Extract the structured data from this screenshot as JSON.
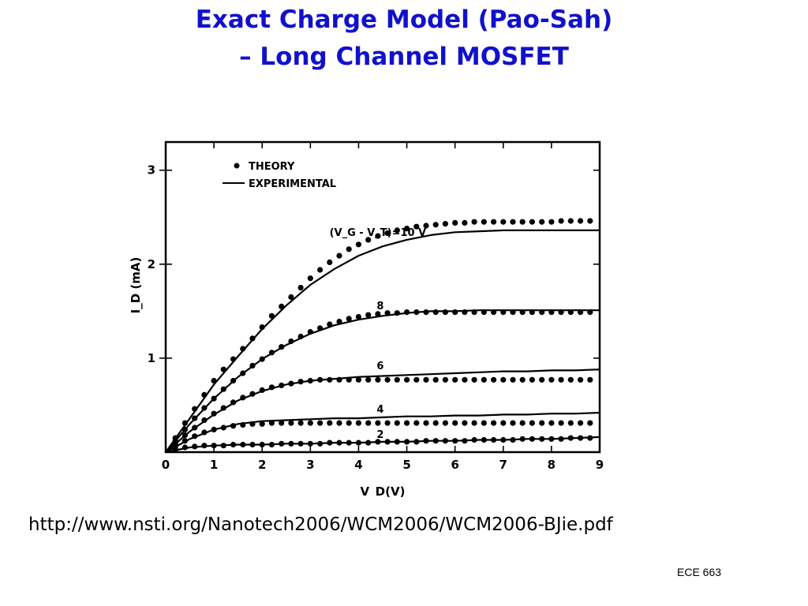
{
  "title": {
    "line1": "Exact Charge Model (Pao-Sah)",
    "line2": "– Long Channel MOSFET"
  },
  "source_url": "http://www.nsti.org/Nanotech2006/WCM2006/WCM2006-BJie.pdf",
  "footer": "ECE 663",
  "colors": {
    "title": "#1111cc",
    "ink": "#000000"
  },
  "chart_data": {
    "type": "line",
    "xlabel": "V_D(V)",
    "ylabel": "I_D (mA)",
    "xlim": [
      0,
      9
    ],
    "ylim": [
      0,
      3.3
    ],
    "xticks": [
      0,
      1,
      2,
      3,
      4,
      5,
      6,
      7,
      8,
      9
    ],
    "yticks": [
      1,
      2,
      3
    ],
    "legend": {
      "placement": "top-left",
      "entries": [
        {
          "marker": "dot",
          "label": "THEORY"
        },
        {
          "marker": "line",
          "label": "EXPERIMENTAL"
        }
      ]
    },
    "curve_labels": [
      {
        "text": "(V_G - V_T)=10 V",
        "x": 4.4,
        "y": 2.3
      },
      {
        "text": "8",
        "x": 4.45,
        "y": 1.52
      },
      {
        "text": "6",
        "x": 4.45,
        "y": 0.88
      },
      {
        "text": "4",
        "x": 4.45,
        "y": 0.42
      },
      {
        "text": "2",
        "x": 4.45,
        "y": 0.15
      }
    ],
    "series": [
      {
        "vgvt": 10,
        "experimental": {
          "x": [
            0,
            0.5,
            1,
            1.5,
            2,
            2.5,
            3,
            3.5,
            4,
            4.5,
            5,
            5.5,
            6,
            6.5,
            7,
            7.5,
            8,
            8.5,
            9
          ],
          "y": [
            0,
            0.36,
            0.72,
            1.02,
            1.31,
            1.56,
            1.78,
            1.95,
            2.09,
            2.19,
            2.26,
            2.31,
            2.34,
            2.35,
            2.36,
            2.36,
            2.36,
            2.36,
            2.36
          ]
        },
        "theory": {
          "x": [
            0.2,
            0.4,
            0.6,
            0.8,
            1.0,
            1.2,
            1.4,
            1.6,
            1.8,
            2.0,
            2.2,
            2.4,
            2.6,
            2.8,
            3.0,
            3.2,
            3.4,
            3.6,
            3.8,
            4.0,
            4.2,
            4.4,
            4.6,
            4.8,
            5.0,
            5.2,
            5.4,
            5.6,
            5.8,
            6.0,
            6.2,
            6.4,
            6.6,
            6.8,
            7.0,
            7.2,
            7.4,
            7.6,
            7.8,
            8.0,
            8.2,
            8.4,
            8.6,
            8.8
          ],
          "y": [
            0.15,
            0.31,
            0.46,
            0.61,
            0.76,
            0.88,
            0.99,
            1.1,
            1.21,
            1.33,
            1.45,
            1.55,
            1.65,
            1.75,
            1.85,
            1.94,
            2.02,
            2.09,
            2.16,
            2.21,
            2.26,
            2.3,
            2.33,
            2.36,
            2.38,
            2.4,
            2.41,
            2.42,
            2.43,
            2.44,
            2.44,
            2.45,
            2.45,
            2.45,
            2.45,
            2.45,
            2.45,
            2.45,
            2.45,
            2.45,
            2.46,
            2.46,
            2.46,
            2.46
          ]
        }
      },
      {
        "vgvt": 8,
        "experimental": {
          "x": [
            0,
            0.5,
            1,
            1.5,
            2,
            2.5,
            3,
            3.5,
            4,
            4.5,
            5,
            5.5,
            6,
            6.5,
            7,
            7.5,
            8,
            8.5,
            9
          ],
          "y": [
            0,
            0.3,
            0.57,
            0.8,
            0.99,
            1.14,
            1.26,
            1.35,
            1.41,
            1.45,
            1.48,
            1.5,
            1.5,
            1.51,
            1.51,
            1.51,
            1.51,
            1.51,
            1.51
          ]
        },
        "theory": {
          "x": [
            0.2,
            0.4,
            0.6,
            0.8,
            1.0,
            1.2,
            1.4,
            1.6,
            1.8,
            2.0,
            2.2,
            2.4,
            2.6,
            2.8,
            3.0,
            3.2,
            3.4,
            3.6,
            3.8,
            4.0,
            4.2,
            4.4,
            4.6,
            4.8,
            5.0,
            5.2,
            5.4,
            5.6,
            5.8,
            6.0,
            6.2,
            6.4,
            6.6,
            6.8,
            7.0,
            7.2,
            7.4,
            7.6,
            7.8,
            8.0,
            8.2,
            8.4,
            8.6,
            8.8
          ],
          "y": [
            0.12,
            0.24,
            0.36,
            0.47,
            0.57,
            0.67,
            0.76,
            0.84,
            0.92,
            0.99,
            1.06,
            1.12,
            1.18,
            1.23,
            1.28,
            1.32,
            1.36,
            1.39,
            1.42,
            1.44,
            1.46,
            1.47,
            1.48,
            1.48,
            1.49,
            1.49,
            1.49,
            1.49,
            1.49,
            1.49,
            1.49,
            1.49,
            1.49,
            1.49,
            1.49,
            1.49,
            1.49,
            1.49,
            1.49,
            1.49,
            1.49,
            1.49,
            1.49,
            1.49
          ]
        }
      },
      {
        "vgvt": 6,
        "experimental": {
          "x": [
            0,
            0.5,
            1,
            1.5,
            2,
            2.5,
            3,
            3.5,
            4,
            4.5,
            5,
            5.5,
            6,
            6.5,
            7,
            7.5,
            8,
            8.5,
            9
          ],
          "y": [
            0,
            0.22,
            0.4,
            0.55,
            0.65,
            0.72,
            0.76,
            0.78,
            0.8,
            0.81,
            0.82,
            0.83,
            0.84,
            0.85,
            0.86,
            0.86,
            0.87,
            0.87,
            0.88
          ]
        },
        "theory": {
          "x": [
            0.2,
            0.4,
            0.6,
            0.8,
            1.0,
            1.2,
            1.4,
            1.6,
            1.8,
            2.0,
            2.2,
            2.4,
            2.6,
            2.8,
            3.0,
            3.2,
            3.4,
            3.6,
            3.8,
            4.0,
            4.2,
            4.4,
            4.6,
            4.8,
            5.0,
            5.2,
            5.4,
            5.6,
            5.8,
            6.0,
            6.2,
            6.4,
            6.6,
            6.8,
            7.0,
            7.2,
            7.4,
            7.6,
            7.8,
            8.0,
            8.2,
            8.4,
            8.6,
            8.8
          ],
          "y": [
            0.09,
            0.18,
            0.26,
            0.34,
            0.41,
            0.47,
            0.53,
            0.58,
            0.62,
            0.66,
            0.69,
            0.71,
            0.73,
            0.75,
            0.76,
            0.77,
            0.77,
            0.77,
            0.77,
            0.77,
            0.77,
            0.77,
            0.77,
            0.77,
            0.77,
            0.77,
            0.77,
            0.77,
            0.77,
            0.77,
            0.77,
            0.77,
            0.77,
            0.77,
            0.77,
            0.77,
            0.77,
            0.77,
            0.77,
            0.77,
            0.77,
            0.77,
            0.77,
            0.77
          ]
        }
      },
      {
        "vgvt": 4,
        "experimental": {
          "x": [
            0,
            0.5,
            1,
            1.5,
            2,
            2.5,
            3,
            3.5,
            4,
            4.5,
            5,
            5.5,
            6,
            6.5,
            7,
            7.5,
            8,
            8.5,
            9
          ],
          "y": [
            0,
            0.14,
            0.24,
            0.3,
            0.33,
            0.34,
            0.35,
            0.36,
            0.36,
            0.37,
            0.38,
            0.38,
            0.39,
            0.39,
            0.4,
            0.4,
            0.41,
            0.41,
            0.42
          ]
        },
        "theory": {
          "x": [
            0.2,
            0.4,
            0.6,
            0.8,
            1.0,
            1.2,
            1.4,
            1.6,
            1.8,
            2.0,
            2.2,
            2.4,
            2.6,
            2.8,
            3.0,
            3.2,
            3.4,
            3.6,
            3.8,
            4.0,
            4.2,
            4.4,
            4.6,
            4.8,
            5.0,
            5.2,
            5.4,
            5.6,
            5.8,
            6.0,
            6.2,
            6.4,
            6.6,
            6.8,
            7.0,
            7.2,
            7.4,
            7.6,
            7.8,
            8.0,
            8.2,
            8.4,
            8.6,
            8.8
          ],
          "y": [
            0.06,
            0.12,
            0.17,
            0.21,
            0.24,
            0.26,
            0.28,
            0.29,
            0.3,
            0.3,
            0.31,
            0.31,
            0.31,
            0.31,
            0.31,
            0.31,
            0.31,
            0.31,
            0.31,
            0.31,
            0.31,
            0.31,
            0.31,
            0.31,
            0.31,
            0.31,
            0.31,
            0.31,
            0.31,
            0.31,
            0.31,
            0.31,
            0.31,
            0.31,
            0.31,
            0.31,
            0.31,
            0.31,
            0.31,
            0.31,
            0.31,
            0.31,
            0.31,
            0.31
          ]
        }
      },
      {
        "vgvt": 2,
        "experimental": {
          "x": [
            0,
            0.5,
            1,
            1.5,
            2,
            2.5,
            3,
            3.5,
            4,
            4.5,
            5,
            5.5,
            6,
            6.5,
            7,
            7.5,
            8,
            8.5,
            9
          ],
          "y": [
            0,
            0.05,
            0.07,
            0.08,
            0.08,
            0.09,
            0.09,
            0.1,
            0.1,
            0.11,
            0.11,
            0.12,
            0.12,
            0.13,
            0.13,
            0.14,
            0.14,
            0.15,
            0.16
          ]
        },
        "theory": {
          "x": [
            0.2,
            0.4,
            0.6,
            0.8,
            1.0,
            1.2,
            1.4,
            1.6,
            1.8,
            2.0,
            2.2,
            2.4,
            2.6,
            2.8,
            3.0,
            3.2,
            3.4,
            3.6,
            3.8,
            4.0,
            4.2,
            4.4,
            4.6,
            4.8,
            5.0,
            5.2,
            5.4,
            5.6,
            5.8,
            6.0,
            6.2,
            6.4,
            6.6,
            6.8,
            7.0,
            7.2,
            7.4,
            7.6,
            7.8,
            8.0,
            8.2,
            8.4,
            8.6,
            8.8
          ],
          "y": [
            0.03,
            0.05,
            0.06,
            0.07,
            0.07,
            0.07,
            0.08,
            0.08,
            0.08,
            0.08,
            0.08,
            0.09,
            0.09,
            0.09,
            0.09,
            0.09,
            0.1,
            0.1,
            0.1,
            0.1,
            0.1,
            0.11,
            0.11,
            0.11,
            0.11,
            0.11,
            0.12,
            0.12,
            0.12,
            0.12,
            0.12,
            0.13,
            0.13,
            0.13,
            0.13,
            0.13,
            0.14,
            0.14,
            0.14,
            0.14,
            0.14,
            0.15,
            0.15,
            0.15
          ]
        }
      }
    ]
  }
}
